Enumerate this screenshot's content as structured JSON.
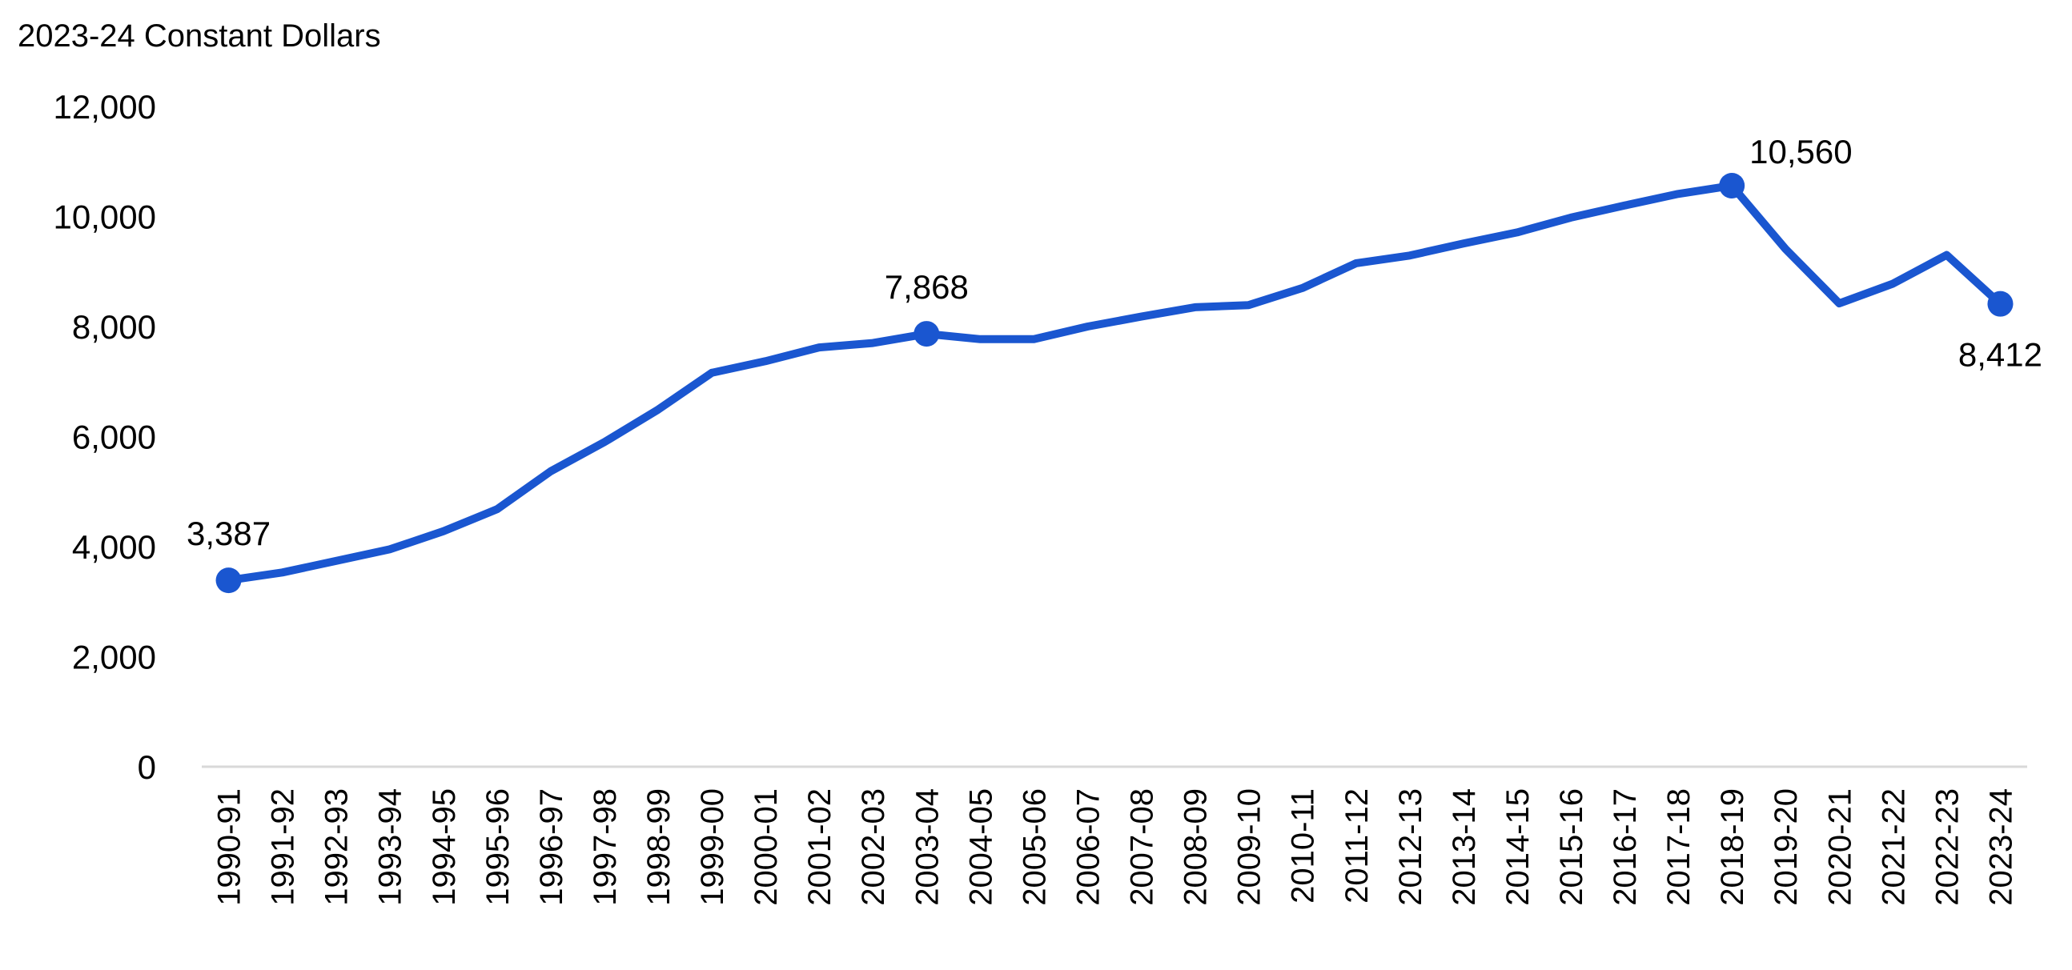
{
  "chart_data": {
    "type": "line",
    "ylabel": "2023-24 Constant Dollars",
    "ylim": [
      0,
      12000
    ],
    "yticks": [
      0,
      2000,
      4000,
      6000,
      8000,
      10000,
      12000
    ],
    "ytick_labels": [
      "0",
      "2,000",
      "4,000",
      "6,000",
      "8,000",
      "10,000",
      "12,000"
    ],
    "grid": false,
    "legend": "none",
    "categories": [
      "1990-91",
      "1991-92",
      "1992-93",
      "1993-94",
      "1994-95",
      "1995-96",
      "1996-97",
      "1997-98",
      "1998-99",
      "1999-00",
      "2000-01",
      "2001-02",
      "2002-03",
      "2003-04",
      "2004-05",
      "2005-06",
      "2006-07",
      "2007-08",
      "2008-09",
      "2009-10",
      "2010-11",
      "2011-12",
      "2012-13",
      "2013-14",
      "2014-15",
      "2015-16",
      "2016-17",
      "2017-18",
      "2018-19",
      "2019-20",
      "2020-21",
      "2021-22",
      "2022-23",
      "2023-24"
    ],
    "series": [
      {
        "color": "#1a56d0",
        "values": [
          3387,
          3530,
          3740,
          3950,
          4280,
          4680,
          5370,
          5900,
          6490,
          7160,
          7370,
          7620,
          7700,
          7868,
          7770,
          7770,
          8000,
          8180,
          8350,
          8390,
          8700,
          9150,
          9290,
          9510,
          9710,
          9980,
          10200,
          10410,
          10560,
          9410,
          8420,
          8780,
          9300,
          8412
        ]
      }
    ],
    "data_labels": [
      {
        "index": 0,
        "text": "3,387",
        "position": "above"
      },
      {
        "index": 13,
        "text": "7,868",
        "position": "above"
      },
      {
        "index": 28,
        "text": "10,560",
        "position": "above-right"
      },
      {
        "index": 33,
        "text": "8,412",
        "position": "below"
      }
    ]
  }
}
